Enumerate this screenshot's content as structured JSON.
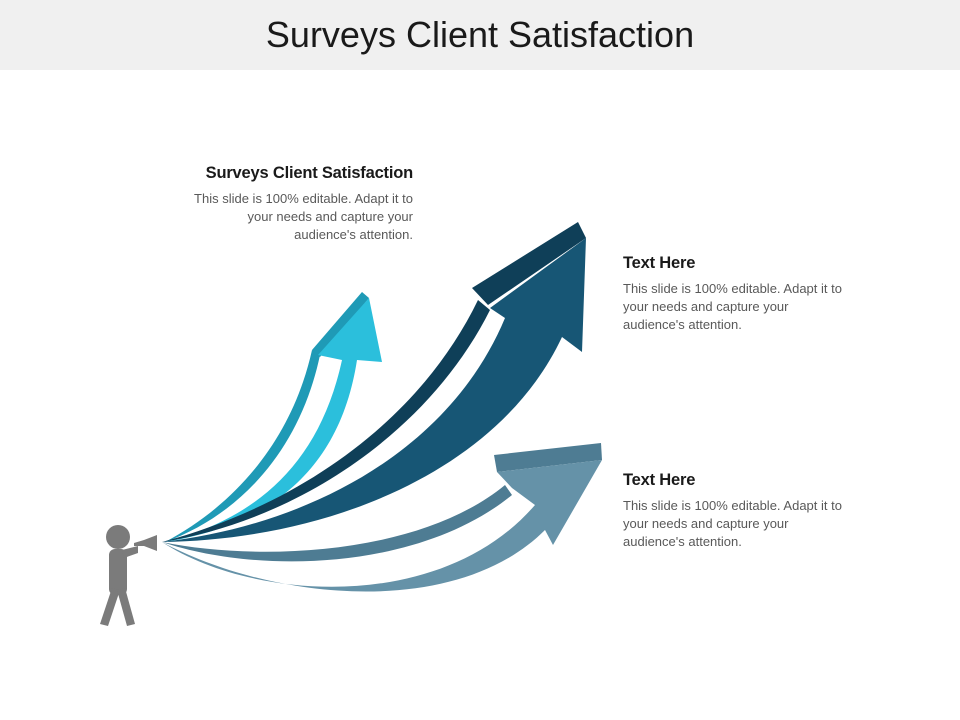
{
  "page": {
    "title": "Surveys Client Satisfaction"
  },
  "blocks": [
    {
      "heading": "Surveys Client Satisfaction",
      "body": "This slide is 100% editable. Adapt it to your needs and capture your audience's attention."
    },
    {
      "heading": "Text Here",
      "body": "This slide is 100% editable. Adapt it to your needs and capture your audience's attention."
    },
    {
      "heading": "Text Here",
      "body": "This slide is 100% editable. Adapt it to your needs and capture your audience's attention."
    }
  ],
  "colors": {
    "header_band": "#f0f0f0",
    "arrow_light": "#2bbfdc",
    "arrow_light_side": "#1f9ab6",
    "arrow_dark": "#175675",
    "arrow_dark_side": "#0f3f58",
    "arrow_mid": "#6592a8",
    "arrow_mid_side": "#4e7c93",
    "person": "#7b7b7b"
  },
  "icons": {
    "speaker": "person-with-megaphone-icon"
  }
}
